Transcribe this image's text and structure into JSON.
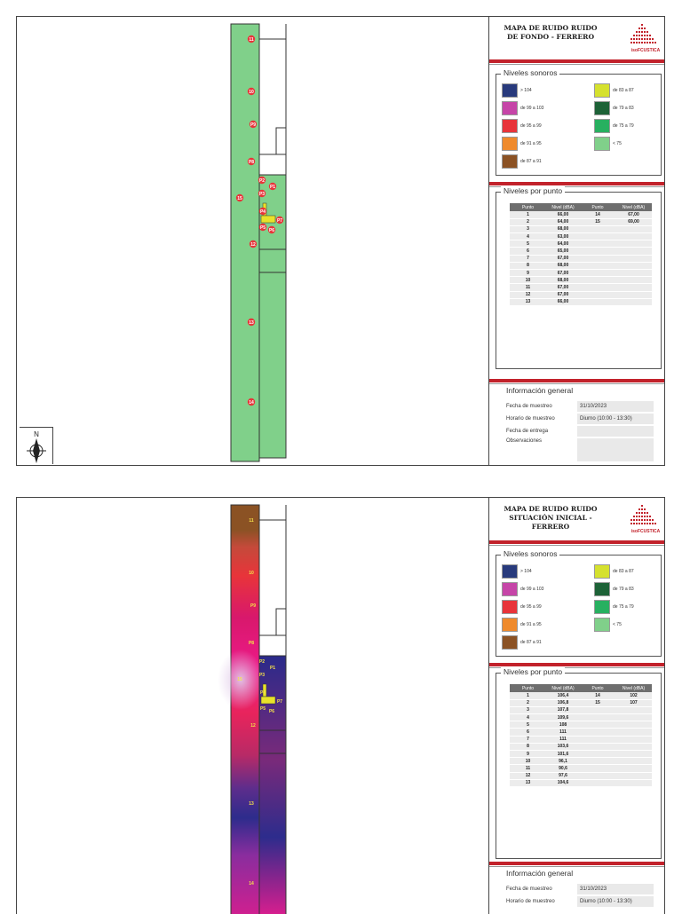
{
  "maps": [
    {
      "title_lines": [
        "MAPA DE RUIDO RUIDO",
        "DE FONDO - FERRERO"
      ],
      "logo_text": "isoFCUSTICA",
      "legend_title": "Niveles sonoros",
      "legend": [
        {
          "label": "> 104",
          "color": "#283a7c"
        },
        {
          "label": "de 99 a 103",
          "color": "#c645a8"
        },
        {
          "label": "de 95 a 99",
          "color": "#e8343a"
        },
        {
          "label": "de 91 a 95",
          "color": "#ef8a2c"
        },
        {
          "label": "de 87 a 91",
          "color": "#8b5224"
        },
        {
          "label": "de 83 a 87",
          "color": "#d5e12e"
        },
        {
          "label": "de 79 a 83",
          "color": "#1d6237"
        },
        {
          "label": "de 75 a 79",
          "color": "#27b060"
        },
        {
          "label": "< 75",
          "color": "#80d08a"
        }
      ],
      "points_title": "Niveles por punto",
      "table_headers": [
        "Punto",
        "Nivel (dBA)",
        "Punto",
        "Nivel (dBA)"
      ],
      "table_rows": [
        [
          "1",
          "66,00",
          "14",
          "67,00"
        ],
        [
          "2",
          "64,00",
          "15",
          "69,00"
        ],
        [
          "3",
          "68,00",
          "",
          ""
        ],
        [
          "4",
          "63,00",
          "",
          ""
        ],
        [
          "5",
          "64,00",
          "",
          ""
        ],
        [
          "6",
          "65,00",
          "",
          ""
        ],
        [
          "7",
          "67,00",
          "",
          ""
        ],
        [
          "8",
          "68,00",
          "",
          ""
        ],
        [
          "9",
          "67,00",
          "",
          ""
        ],
        [
          "10",
          "68,00",
          "",
          ""
        ],
        [
          "11",
          "67,00",
          "",
          ""
        ],
        [
          "12",
          "67,00",
          "",
          ""
        ],
        [
          "13",
          "66,00",
          "",
          ""
        ]
      ],
      "info_title": "Información general",
      "info": [
        {
          "label": "Fecha de muestreo",
          "value": "31/10/2023"
        },
        {
          "label": "Horario de muestreo",
          "value": "Diurno (10:00 - 13:30)"
        },
        {
          "label": "Fecha de entrega",
          "value": ""
        },
        {
          "label": "Observaciones",
          "value": ""
        }
      ],
      "map_labels": {
        "p11": "11",
        "p10": "10",
        "p9": "P9",
        "p8": "P8",
        "p2": "P2",
        "p1": "P1",
        "p3": "P3",
        "p15": "15",
        "p4": "P4",
        "p5": "P5",
        "p6": "P6",
        "p7": "P7",
        "p12": "12",
        "p13": "13",
        "p14": "14"
      },
      "compass_n": "N"
    },
    {
      "title_lines": [
        "MAPA DE RUIDO RUIDO",
        "SITUACIÓN INICIAL - FERRERO"
      ],
      "logo_text": "isoFCUSTICA",
      "legend_title": "Niveles sonoros",
      "legend": [
        {
          "label": "> 104",
          "color": "#283a7c"
        },
        {
          "label": "de 99 a 103",
          "color": "#c645a8"
        },
        {
          "label": "de 95 a 99",
          "color": "#e8343a"
        },
        {
          "label": "de 91 a 95",
          "color": "#ef8a2c"
        },
        {
          "label": "de 87 a 91",
          "color": "#8b5224"
        },
        {
          "label": "de 83 a 87",
          "color": "#d5e12e"
        },
        {
          "label": "de 79 a 83",
          "color": "#1d6237"
        },
        {
          "label": "de 75 a 79",
          "color": "#27b060"
        },
        {
          "label": "< 75",
          "color": "#80d08a"
        }
      ],
      "points_title": "Niveles por punto",
      "table_headers": [
        "Punto",
        "Nivel (dBA)",
        "Punto",
        "Nivel (dBA)"
      ],
      "table_rows": [
        [
          "1",
          "106,4",
          "14",
          "102"
        ],
        [
          "2",
          "106,8",
          "15",
          "107"
        ],
        [
          "3",
          "107,8",
          "",
          ""
        ],
        [
          "4",
          "109,6",
          "",
          ""
        ],
        [
          "5",
          "108",
          "",
          ""
        ],
        [
          "6",
          "111",
          "",
          ""
        ],
        [
          "7",
          "111",
          "",
          ""
        ],
        [
          "8",
          "103,6",
          "",
          ""
        ],
        [
          "9",
          "101,6",
          "",
          ""
        ],
        [
          "10",
          "96,1",
          "",
          ""
        ],
        [
          "11",
          "90,6",
          "",
          ""
        ],
        [
          "12",
          "97,6",
          "",
          ""
        ],
        [
          "13",
          "104,6",
          "",
          ""
        ]
      ],
      "info_title": "Información general",
      "info": [
        {
          "label": "Fecha de muestreo",
          "value": "31/10/2023"
        },
        {
          "label": "Horario de muestreo",
          "value": "Diurno (10:00 - 13:30)"
        }
      ],
      "map_labels": {
        "p11": "11",
        "p10": "10",
        "p9": "P9",
        "p8": "P8",
        "p2": "P2",
        "p1": "P1",
        "p3": "P3",
        "p15": "15",
        "p4": "P4",
        "p5": "P5",
        "p6": "P6",
        "p7": "P7",
        "p12": "12",
        "p13": "13",
        "p14": "14"
      }
    }
  ]
}
